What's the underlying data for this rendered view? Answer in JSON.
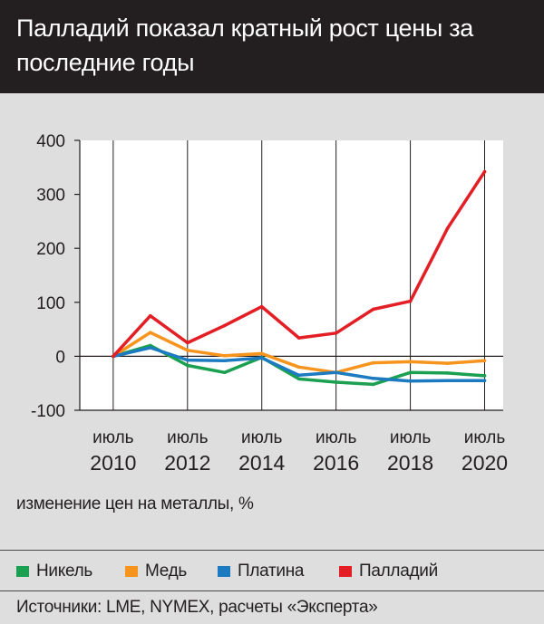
{
  "header": {
    "title": "Палладий показал кратный рост цены за последние годы"
  },
  "chart_data": {
    "type": "line",
    "title": "Палладий показал кратный рост цены за последние годы",
    "ylabel": "изменение цен на металлы, %",
    "xlabel": "",
    "ylim": [
      -100,
      400
    ],
    "yticks": [
      -100,
      0,
      100,
      200,
      300,
      400
    ],
    "xlim": [
      2009.6,
      2021.0
    ],
    "xticks": [
      {
        "value": 2010.5,
        "line1": "июль",
        "line2": "2010"
      },
      {
        "value": 2012.5,
        "line1": "июль",
        "line2": "2012"
      },
      {
        "value": 2014.5,
        "line1": "июль",
        "line2": "2014"
      },
      {
        "value": 2016.5,
        "line1": "июль",
        "line2": "2016"
      },
      {
        "value": 2018.5,
        "line1": "июль",
        "line2": "2018"
      },
      {
        "value": 2020.5,
        "line1": "июль",
        "line2": "2020"
      }
    ],
    "grid": "vertical at ticks",
    "x": [
      2010.5,
      2011.5,
      2012.5,
      2013.5,
      2014.5,
      2015.5,
      2016.5,
      2017.5,
      2018.5,
      2019.5,
      2020.5
    ],
    "series": [
      {
        "name": "Никель",
        "color": "#1aa050",
        "values": [
          0,
          20,
          -17,
          -30,
          -2,
          -42,
          -48,
          -52,
          -30,
          -31,
          -36
        ]
      },
      {
        "name": "Медь",
        "color": "#f7941d",
        "values": [
          0,
          44,
          11,
          1,
          5,
          -20,
          -30,
          -12,
          -10,
          -13,
          -8
        ]
      },
      {
        "name": "Платина",
        "color": "#1c7ac0",
        "values": [
          0,
          16,
          -7,
          -8,
          -3,
          -35,
          -30,
          -41,
          -46,
          -45,
          -45
        ]
      },
      {
        "name": "Палладий",
        "color": "#e31e25",
        "values": [
          0,
          75,
          25,
          57,
          92,
          34,
          43,
          87,
          102,
          237,
          342
        ]
      }
    ]
  },
  "legend": {
    "items": [
      {
        "label": "Никель",
        "color": "#1aa050"
      },
      {
        "label": "Медь",
        "color": "#f7941d"
      },
      {
        "label": "Платина",
        "color": "#1c7ac0"
      },
      {
        "label": "Палладий",
        "color": "#e31e25"
      }
    ]
  },
  "footer": {
    "source": "Источники: LME, NYMEX, расчеты «Эксперта»"
  }
}
